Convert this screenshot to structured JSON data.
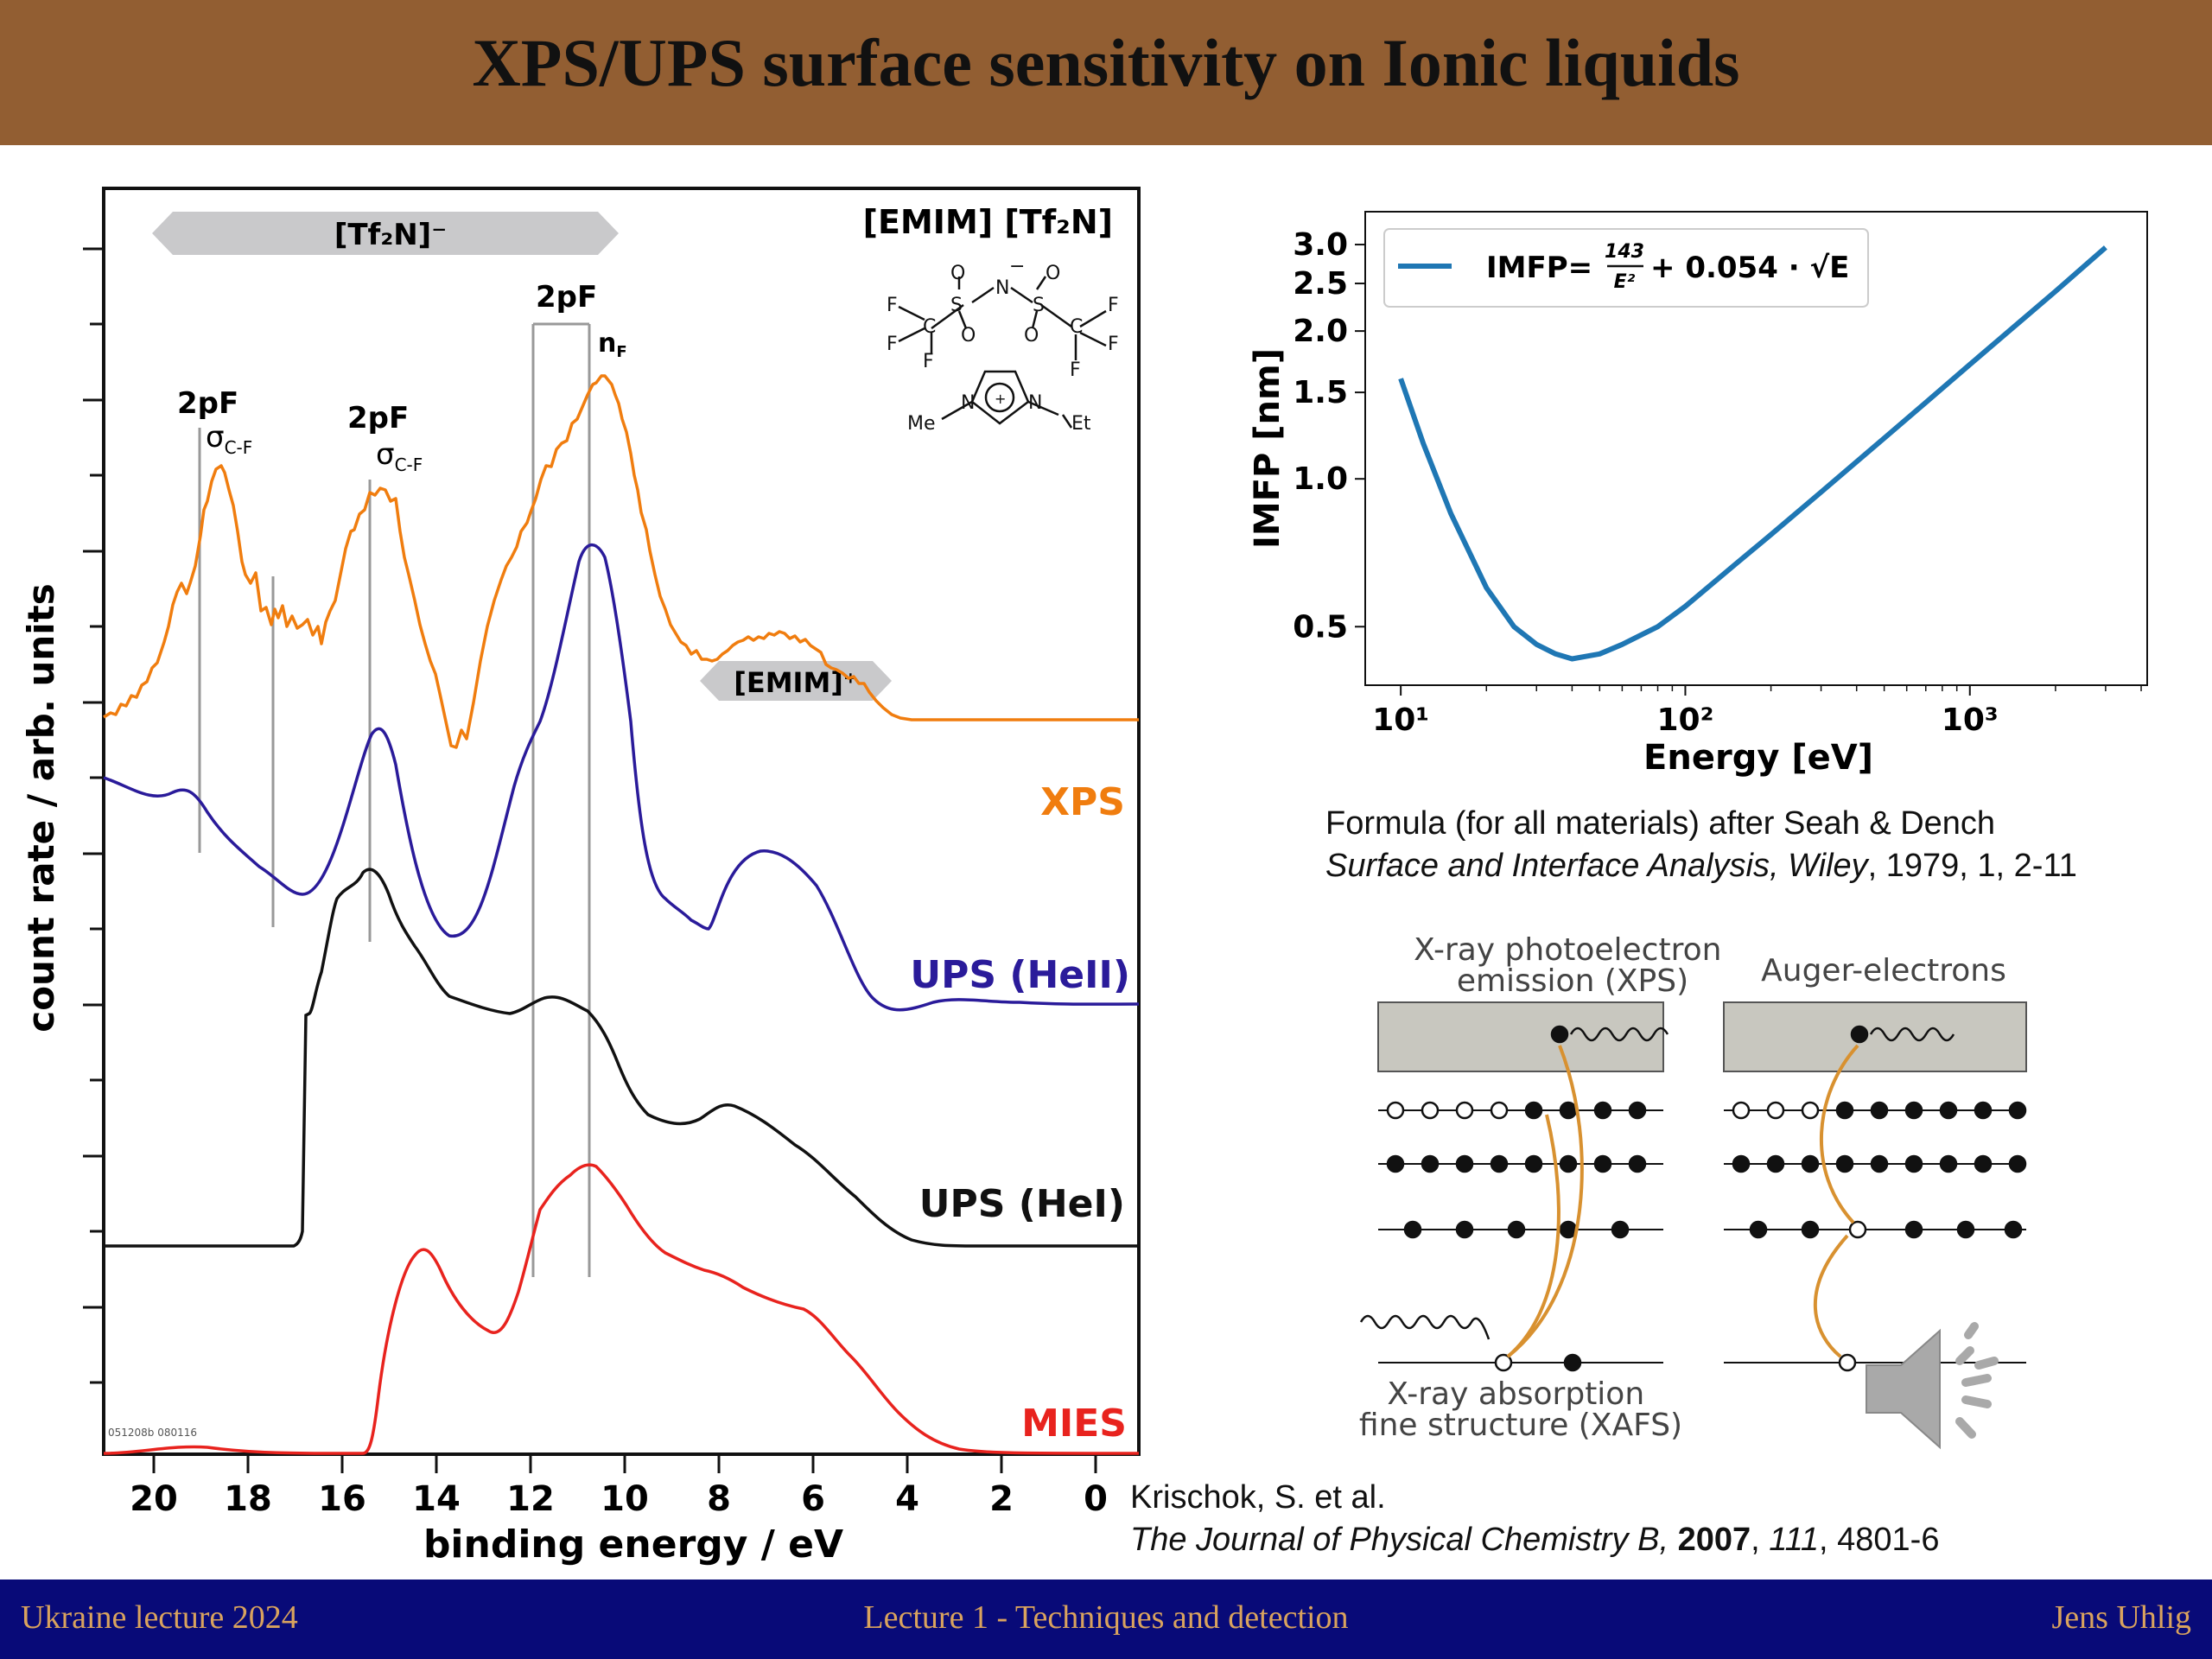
{
  "slide": {
    "title": "XPS/UPS surface sensitivity on Ionic liquids",
    "footer_left": "Ukraine lecture 2024",
    "footer_center": "Lecture 1 - Techniques and detection",
    "footer_right": "Jens Uhlig"
  },
  "spectra_figure": {
    "ylabel": "count rate / arb. units",
    "xlabel": "binding energy / eV",
    "x_ticks": [
      "20",
      "18",
      "16",
      "14",
      "12",
      "10",
      "8",
      "6",
      "4",
      "2",
      "0"
    ],
    "anion_band": "[Tf₂N]⁻",
    "cation_band": "[EMIM]⁺",
    "compound": "[EMIM] [Tf₂N]",
    "peak_label_2pF": "2pF",
    "sigma": "σ",
    "sigma_sub": "C-F",
    "nF": "n",
    "nF_sub": "F",
    "trace_labels": {
      "xps": "XPS",
      "ups2": "UPS (HeII)",
      "ups1": "UPS (HeI)",
      "mies": "MIES"
    },
    "trace_colors": {
      "xps": "#f07d0f",
      "ups2": "#2a1b9a",
      "ups1": "#111111",
      "mies": "#e8231e"
    },
    "corner_code": "051208b\n080116",
    "molecule": {
      "methyl": "Me",
      "ethyl": "Et",
      "N": "N",
      "S": "S",
      "O": "O",
      "F": "F",
      "C": "C",
      "plus": "+",
      "minus": "−"
    }
  },
  "chart_data": {
    "type": "line",
    "title": "",
    "xlabel": "Energy [eV]",
    "ylabel": "IMFP [nm]",
    "xscale": "log",
    "yscale": "log",
    "xlim": [
      7.5,
      4200
    ],
    "ylim": [
      0.38,
      3.5
    ],
    "x_ticks": [
      10,
      100,
      1000
    ],
    "x_tick_labels": [
      "10¹",
      "10²",
      "10³"
    ],
    "y_ticks": [
      0.5,
      1.0,
      1.5,
      2.0,
      2.5,
      3.0
    ],
    "y_tick_labels": [
      "0.5",
      "1.0",
      "1.5",
      "2.0",
      "2.5",
      "3.0"
    ],
    "legend": "top-left",
    "grid": false,
    "series": [
      {
        "name": "IMFP = 143/E² + 0.054·√E",
        "color": "#1f77b4",
        "x": [
          10,
          12,
          15,
          20,
          25,
          30,
          35,
          40,
          50,
          60,
          80,
          100,
          150,
          200,
          300,
          500,
          700,
          1000,
          1500,
          2000,
          3000
        ],
        "y": [
          1.6,
          1.18,
          0.85,
          0.6,
          0.5,
          0.46,
          0.44,
          0.43,
          0.44,
          0.46,
          0.5,
          0.55,
          0.67,
          0.77,
          0.94,
          1.21,
          1.43,
          1.71,
          2.09,
          2.41,
          2.96
        ]
      }
    ]
  },
  "imfp_legend": {
    "prefix": "IMFP=",
    "num": "143",
    "den": "E²",
    "suffix": "+ 0.054 · √E"
  },
  "formula_citation": {
    "line1": "Formula (for all materials) after Seah & Dench",
    "line2_italic": "Surface and Interface Analysis, Wiley",
    "line2_rest": ", 1979, 1, 2-11"
  },
  "spectra_citation": {
    "line1": "Krischok, S. et al.",
    "journal": "The Journal of Physical Chemistry B,",
    "year": "2007",
    "volume": "111",
    "pages": ", 4801-6"
  },
  "scheme": {
    "xps_label": "X-ray photoelectron\nemission (XPS)",
    "auger_label": "Auger-electrons",
    "xafs_label": "X-ray absorption\nfine structure (XAFS)"
  },
  "audio_icon": "speaker-icon"
}
